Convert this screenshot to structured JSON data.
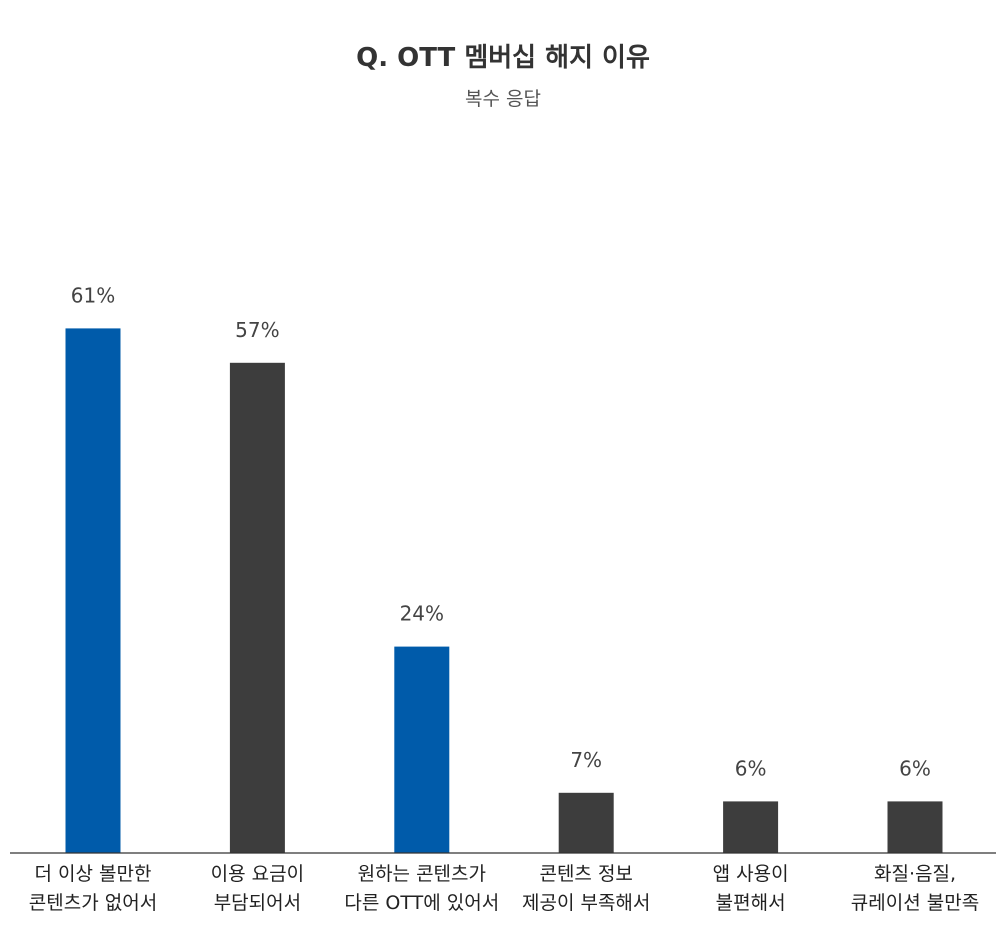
{
  "chart_data": {
    "type": "bar",
    "title": "Q. OTT 멤버십 해지 이유",
    "subtitle": "복수 응답",
    "xlabel": "",
    "ylabel": "",
    "ylim": [
      0,
      100
    ],
    "grid": false,
    "unit": "%",
    "categories": [
      [
        "더 이상 볼만한",
        "콘텐츠가 없어서"
      ],
      [
        "이용 요금이",
        "부담되어서"
      ],
      [
        "원하는 콘텐츠가",
        "다른 OTT에 있어서"
      ],
      [
        "콘텐츠 정보",
        "제공이 부족해서"
      ],
      [
        "앱 사용이",
        "불편해서"
      ],
      [
        "화질·음질,",
        "큐레이션 불만족"
      ]
    ],
    "values": [
      61,
      57,
      24,
      7,
      6,
      6
    ],
    "value_labels": [
      "61%",
      "57%",
      "24%",
      "7%",
      "6%",
      "6%"
    ],
    "colors": [
      "#005BAA",
      "#3D3D3D",
      "#005BAA",
      "#3D3D3D",
      "#3D3D3D",
      "#3D3D3D"
    ]
  }
}
